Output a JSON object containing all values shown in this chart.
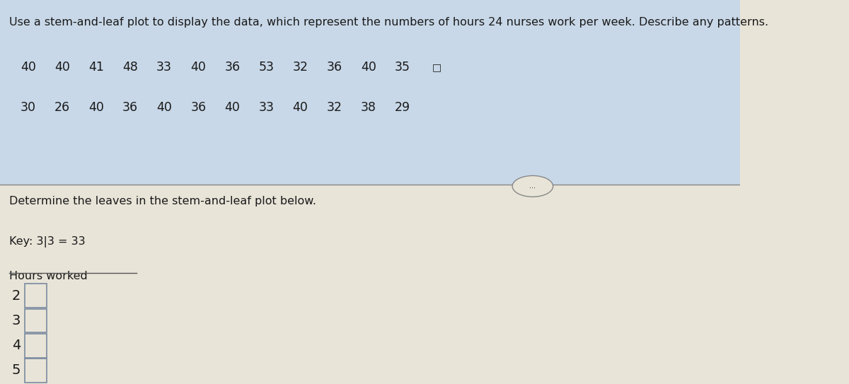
{
  "title": "Use a stem-and-leaf plot to display the data, which represent the numbers of hours 24 nurses work per week. Describe any patterns.",
  "data_row1": [
    40,
    40,
    41,
    48,
    33,
    40,
    36,
    53,
    32,
    36,
    40,
    35
  ],
  "data_row2": [
    30,
    26,
    40,
    36,
    40,
    36,
    40,
    33,
    40,
    32,
    38,
    29
  ],
  "divider_text": "Determine the leaves in the stem-and-leaf plot below.",
  "key_text": "Key: 3|3 = 33",
  "label_text": "Hours worked",
  "stems": [
    2,
    3,
    4,
    5
  ],
  "bg_color": "#e8e4d8",
  "top_bg_color": "#c8d8e8",
  "box_color": "#7a8aa0",
  "text_color": "#1a1a1a",
  "line_color": "#555555",
  "divider_color": "#888888",
  "title_fontsize": 11.5,
  "data_fontsize": 12.5,
  "label_fontsize": 11.5,
  "stem_fontsize": 14,
  "dots_text": "..."
}
